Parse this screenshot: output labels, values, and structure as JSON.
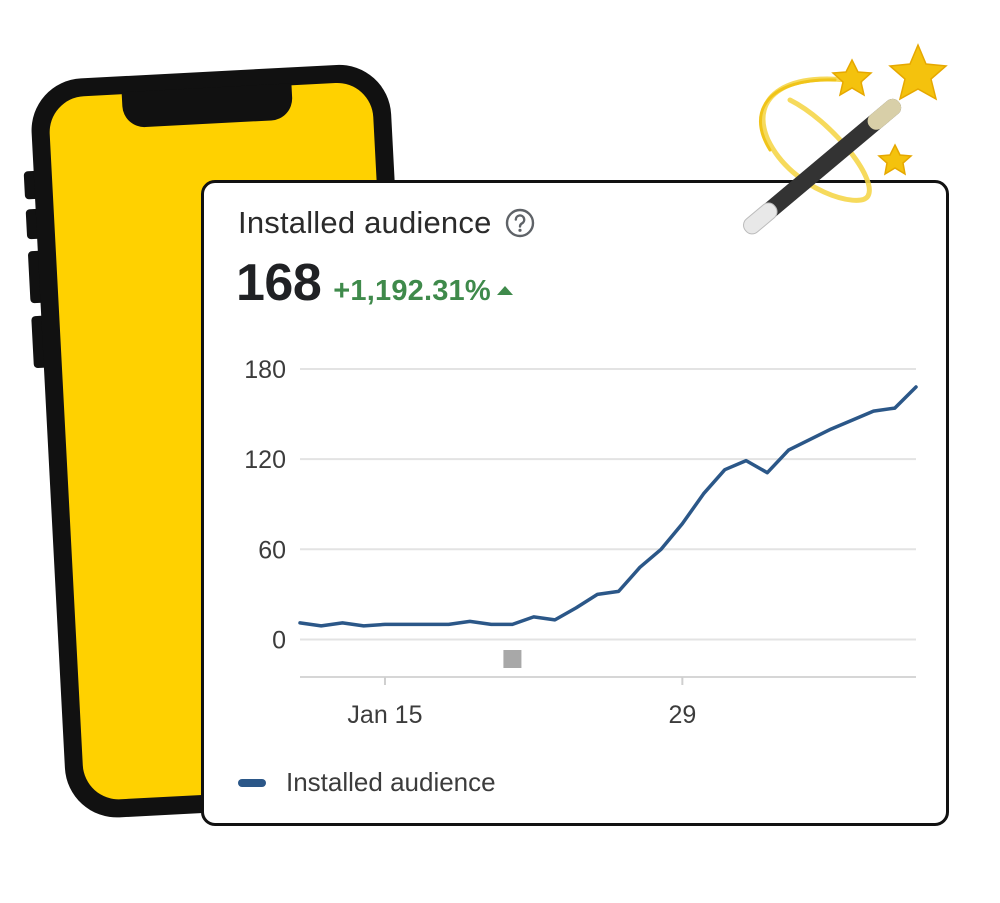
{
  "card": {
    "title": "Installed audience",
    "help_icon": "help-circle-icon",
    "metric_value": "168",
    "metric_change": "+1,192.31%",
    "change_icon": "triangle-up-icon",
    "change_color": "#3f8a4b"
  },
  "illustration": {
    "phone_color": "#ffd100",
    "phone_outline": "#111111",
    "decor": "magic-wand-with-stars-icon"
  },
  "chart_data": {
    "type": "line",
    "title": "Installed audience",
    "xlabel": "",
    "ylabel": "",
    "ylim": [
      -25,
      180
    ],
    "yticks": [
      0,
      60,
      120,
      180
    ],
    "ytick_labels": [
      "0",
      "60",
      "120",
      "180"
    ],
    "xlim": [
      11,
      40
    ],
    "xticks": [
      15,
      29
    ],
    "xtick_labels": [
      "Jan 15",
      "29"
    ],
    "grid": true,
    "legend": "bottom-left",
    "marker_at_x": 21,
    "series": [
      {
        "name": "Installed audience",
        "color": "#2b5788",
        "x": [
          11,
          12,
          13,
          14,
          15,
          16,
          17,
          18,
          19,
          20,
          21,
          22,
          23,
          24,
          25,
          26,
          27,
          28,
          29,
          30,
          31,
          32,
          33,
          34,
          35,
          36,
          37,
          38,
          39,
          40
        ],
        "values": [
          11,
          9,
          11,
          9,
          10,
          10,
          10,
          10,
          12,
          10,
          10,
          15,
          13,
          21,
          30,
          32,
          48,
          60,
          77,
          97,
          113,
          119,
          111,
          126,
          133,
          140,
          146,
          152,
          154,
          168
        ]
      }
    ]
  }
}
